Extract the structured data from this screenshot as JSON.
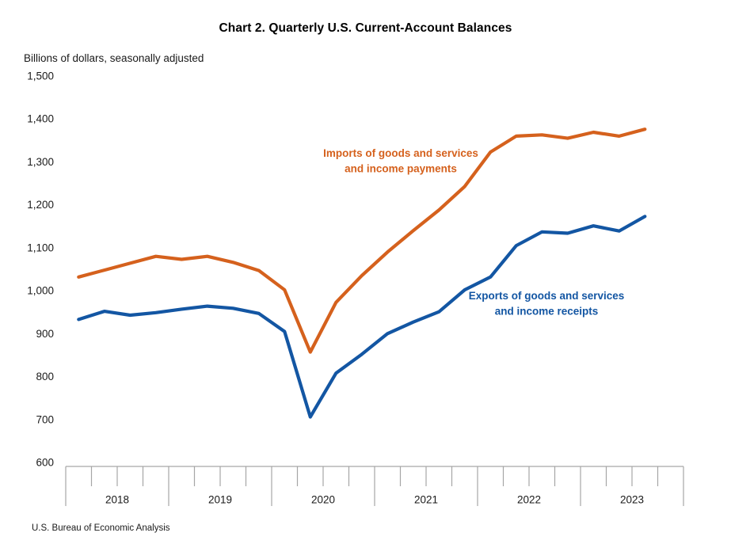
{
  "chart_data": {
    "type": "line",
    "title": "Chart 2. Quarterly U.S. Current-Account Balances",
    "units_label": "Billions of dollars, seasonally adjusted",
    "source": "U.S. Bureau of Economic Analysis",
    "grid": false,
    "legend_position": "inline-labels",
    "ylim": [
      600,
      1500
    ],
    "ytick_step": 100,
    "ytick_labels": [
      "600",
      "700",
      "800",
      "900",
      "1,000",
      "1,100",
      "1,200",
      "1,300",
      "1,400",
      "1,500"
    ],
    "year_labels": [
      "2018",
      "2019",
      "2020",
      "2021",
      "2022",
      "2023"
    ],
    "quarters": [
      "2018 Q1",
      "2018 Q2",
      "2018 Q3",
      "2018 Q4",
      "2019 Q1",
      "2019 Q2",
      "2019 Q3",
      "2019 Q4",
      "2020 Q1",
      "2020 Q2",
      "2020 Q3",
      "2020 Q4",
      "2021 Q1",
      "2021 Q2",
      "2021 Q3",
      "2021 Q4",
      "2022 Q1",
      "2022 Q2",
      "2022 Q3",
      "2022 Q4",
      "2023 Q1",
      "2023 Q2",
      "2023 Q3"
    ],
    "series": [
      {
        "id": "imports",
        "name": "Imports of goods and services and income payments",
        "label_lines": [
          "Imports of goods and services",
          "and income payments"
        ],
        "color": "#D5611D",
        "values": [
          1032,
          1048,
          1064,
          1080,
          1073,
          1080,
          1066,
          1047,
          1002,
          857,
          973,
          1035,
          1090,
          1140,
          1188,
          1243,
          1323,
          1360,
          1363,
          1355,
          1369,
          1360,
          1376
        ]
      },
      {
        "id": "exports",
        "name": "Exports of goods and services and income receipts",
        "label_lines": [
          "Exports of goods and services",
          "and income receipts"
        ],
        "color": "#1356A3",
        "values": [
          933,
          952,
          943,
          949,
          957,
          964,
          959,
          947,
          905,
          706,
          808,
          852,
          900,
          927,
          951,
          1002,
          1032,
          1105,
          1137,
          1134,
          1151,
          1139,
          1173
        ]
      }
    ],
    "axis_color": "#A6A6A6",
    "text_color": "#1a1a1a"
  }
}
